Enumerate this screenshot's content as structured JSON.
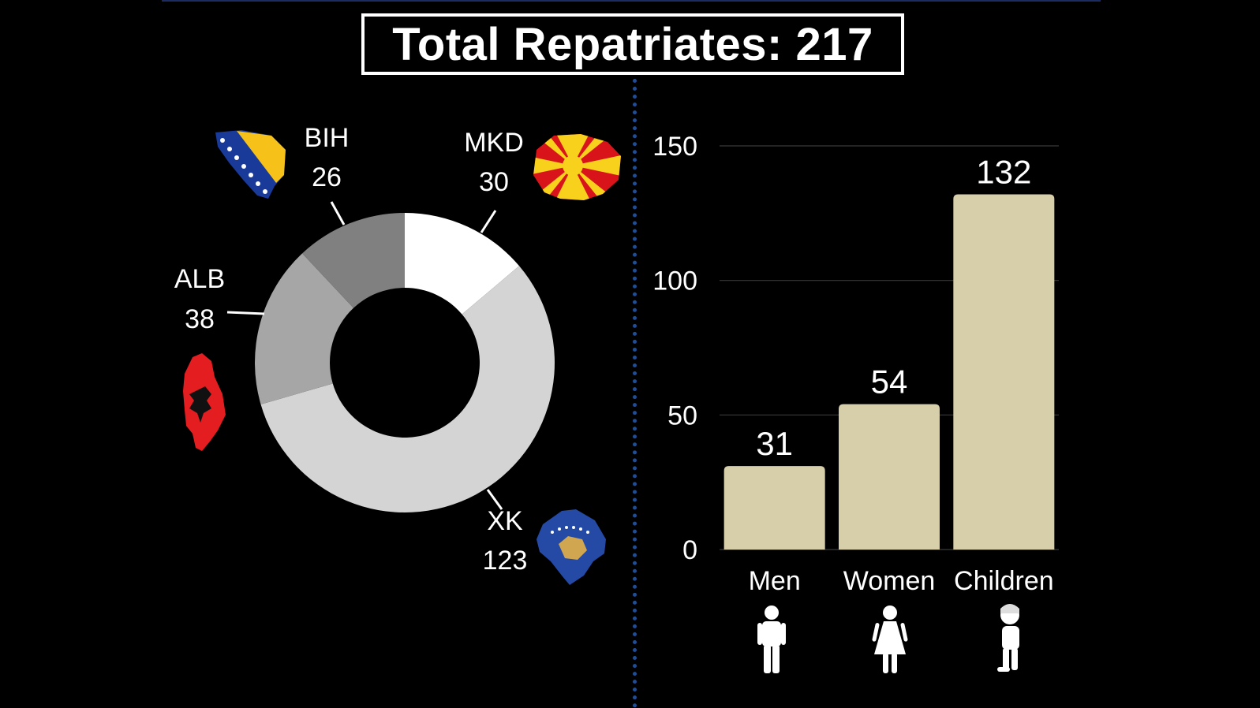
{
  "title": "Total Repatriates: 217",
  "chart_data": [
    {
      "type": "pie",
      "donut": true,
      "slices": [
        {
          "label": "MKD",
          "value": 30,
          "color": "#ffffff",
          "flag": "north-macedonia-flag-icon"
        },
        {
          "label": "XK",
          "value": 123,
          "color": "#d4d4d4",
          "flag": "kosovo-flag-icon"
        },
        {
          "label": "ALB",
          "value": 38,
          "color": "#a6a6a6",
          "flag": "albania-flag-icon"
        },
        {
          "label": "BIH",
          "value": 26,
          "color": "#808080",
          "flag": "bosnia-flag-icon"
        }
      ],
      "value_labels": [
        "30",
        "123",
        "38",
        "26"
      ]
    },
    {
      "type": "bar",
      "categories": [
        "Men",
        "Women",
        "Children"
      ],
      "values": [
        31,
        54,
        132
      ],
      "value_labels": [
        "31",
        "54",
        "132"
      ],
      "icons": [
        "man-icon",
        "woman-icon",
        "child-icon"
      ],
      "ylim": [
        0,
        150
      ],
      "yticks": [
        0,
        50,
        100,
        150
      ],
      "ytick_labels": [
        "0",
        "50",
        "100",
        "150"
      ],
      "grid": true,
      "bar_color": "#d7ceaa",
      "grid_color": "#3a3a3a"
    }
  ]
}
